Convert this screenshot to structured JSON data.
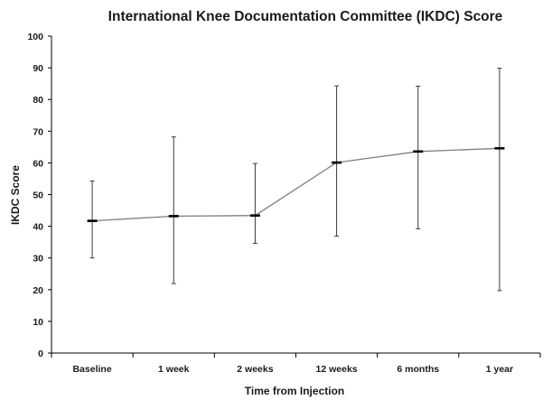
{
  "chart_data": {
    "type": "line",
    "title": "International Knee Documentation Committee (IKDC) Score",
    "xlabel": "Time from Injection",
    "ylabel": "IKDC Score",
    "ylim": [
      0,
      100
    ],
    "yticks": [
      0,
      10,
      20,
      30,
      40,
      50,
      60,
      70,
      80,
      90,
      100
    ],
    "categories": [
      "Baseline",
      "1 week",
      "2 weeks",
      "12 weeks",
      "6 months",
      "1 year"
    ],
    "series": [
      {
        "values": [
          41.7,
          43.2,
          43.4,
          60.1,
          63.6,
          64.6
        ],
        "error_upper": [
          54.3,
          68.2,
          59.8,
          84.3,
          84.2,
          89.9
        ],
        "error_lower": [
          30.0,
          21.9,
          34.6,
          36.9,
          39.2,
          19.7
        ]
      }
    ],
    "grid": false,
    "legend": "none",
    "colors": {
      "line": "#7f7f7f",
      "marker": "#000000",
      "error_bar": "#3a3a3a",
      "axis": "#000000",
      "text": "#1a1a1a"
    }
  }
}
